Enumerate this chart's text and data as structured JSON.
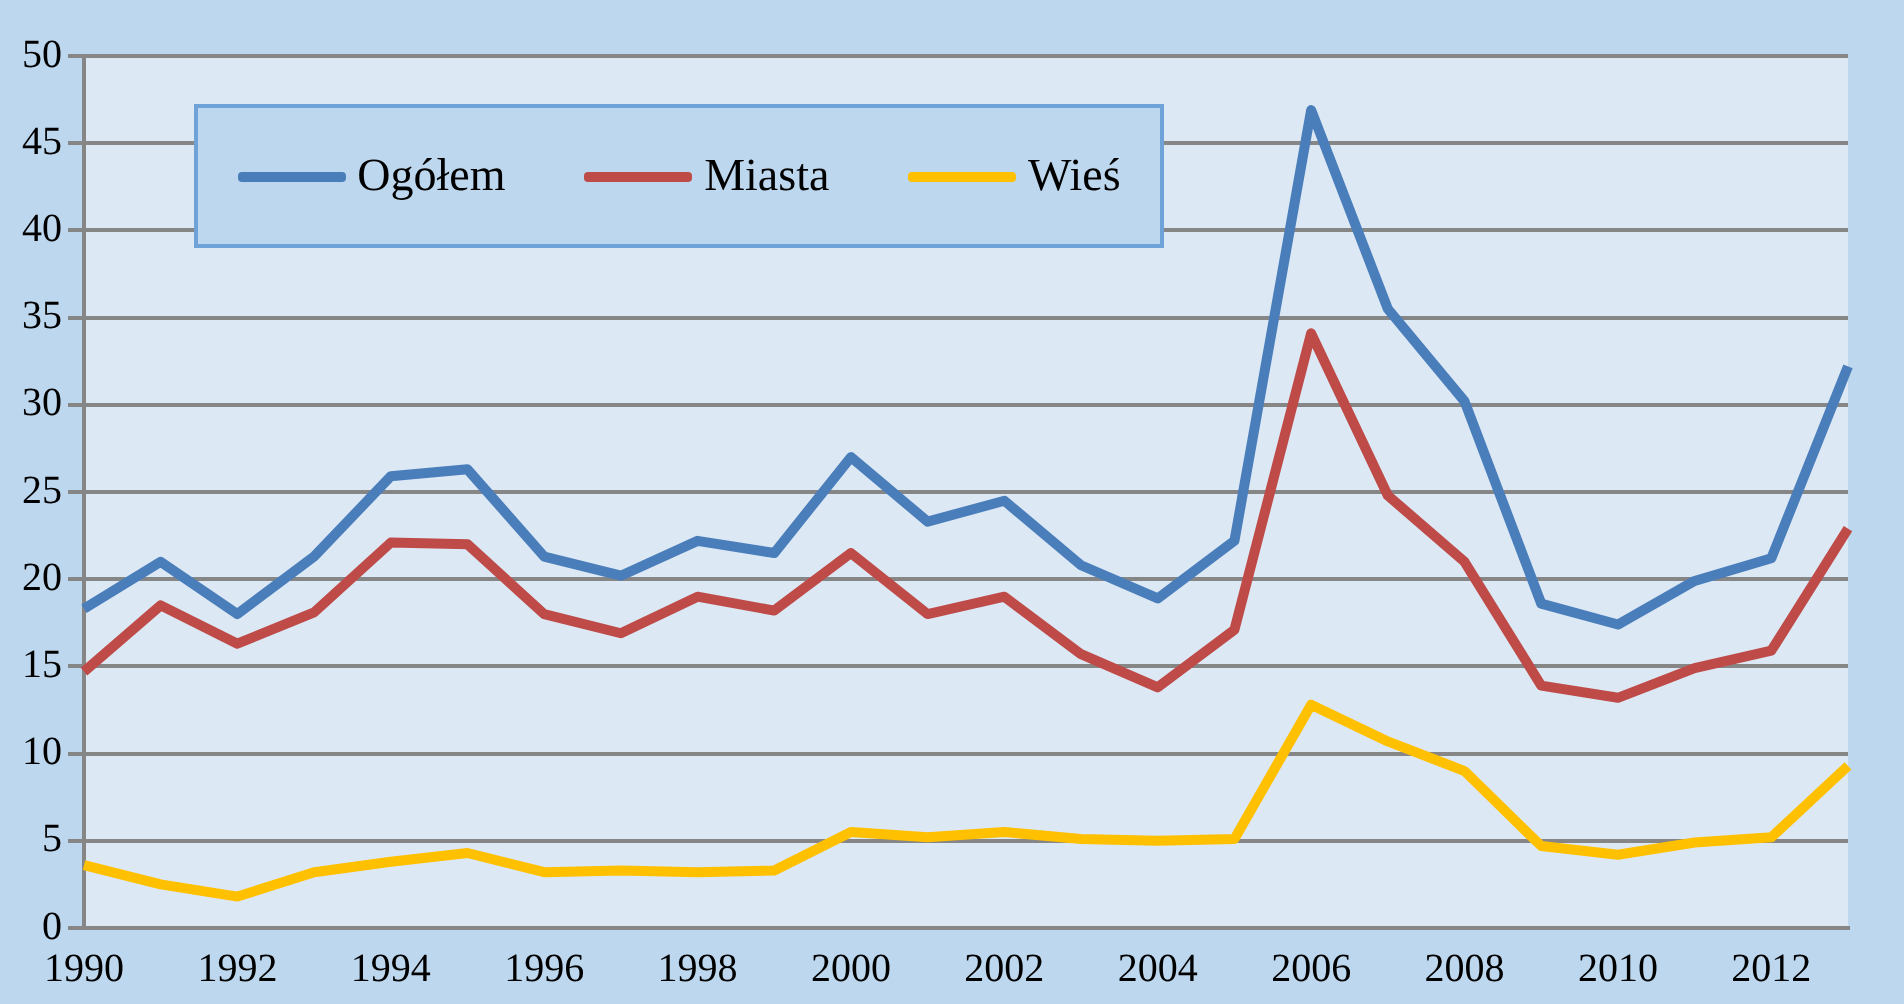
{
  "chart_data": {
    "type": "line",
    "categories": [
      "1990",
      null,
      "1992",
      null,
      "1994",
      null,
      "1996",
      null,
      "1998",
      null,
      "2000",
      null,
      "2002",
      null,
      "2004",
      null,
      "2006",
      null,
      "2008",
      null,
      "2010",
      null,
      "2012",
      null
    ],
    "series": [
      {
        "name": "Ogółem",
        "color": "#4a7ebb",
        "values": [
          18.3,
          21,
          18,
          21.3,
          25.9,
          26.3,
          21.3,
          20.2,
          22.2,
          21.5,
          27,
          23.3,
          24.5,
          20.8,
          18.9,
          22.2,
          46.9,
          35.5,
          30.2,
          18.6,
          17.4,
          19.9,
          21.2,
          32.2
        ]
      },
      {
        "name": "Miasta",
        "color": "#be4b48",
        "values": [
          14.7,
          18.5,
          16.3,
          18.1,
          22.1,
          22,
          18,
          16.9,
          19,
          18.2,
          21.5,
          18,
          19,
          15.7,
          13.8,
          17.1,
          34.1,
          24.8,
          21,
          13.9,
          13.2,
          14.9,
          15.9,
          22.9
        ]
      },
      {
        "name": "Wieś",
        "color": "#ffc000",
        "values": [
          3.6,
          2.5,
          1.8,
          3.2,
          3.8,
          4.3,
          3.2,
          3.3,
          3.2,
          3.3,
          5.5,
          5.2,
          5.5,
          5.1,
          5,
          5.1,
          12.8,
          10.7,
          9,
          4.7,
          4.2,
          4.9,
          5.2,
          9.3
        ]
      }
    ],
    "ylim": [
      0,
      50
    ],
    "yticks": [
      0,
      5,
      10,
      15,
      20,
      25,
      30,
      35,
      40,
      45,
      50
    ],
    "grid": "y",
    "legend": "top left",
    "marker": "none",
    "line_style": "solid"
  }
}
